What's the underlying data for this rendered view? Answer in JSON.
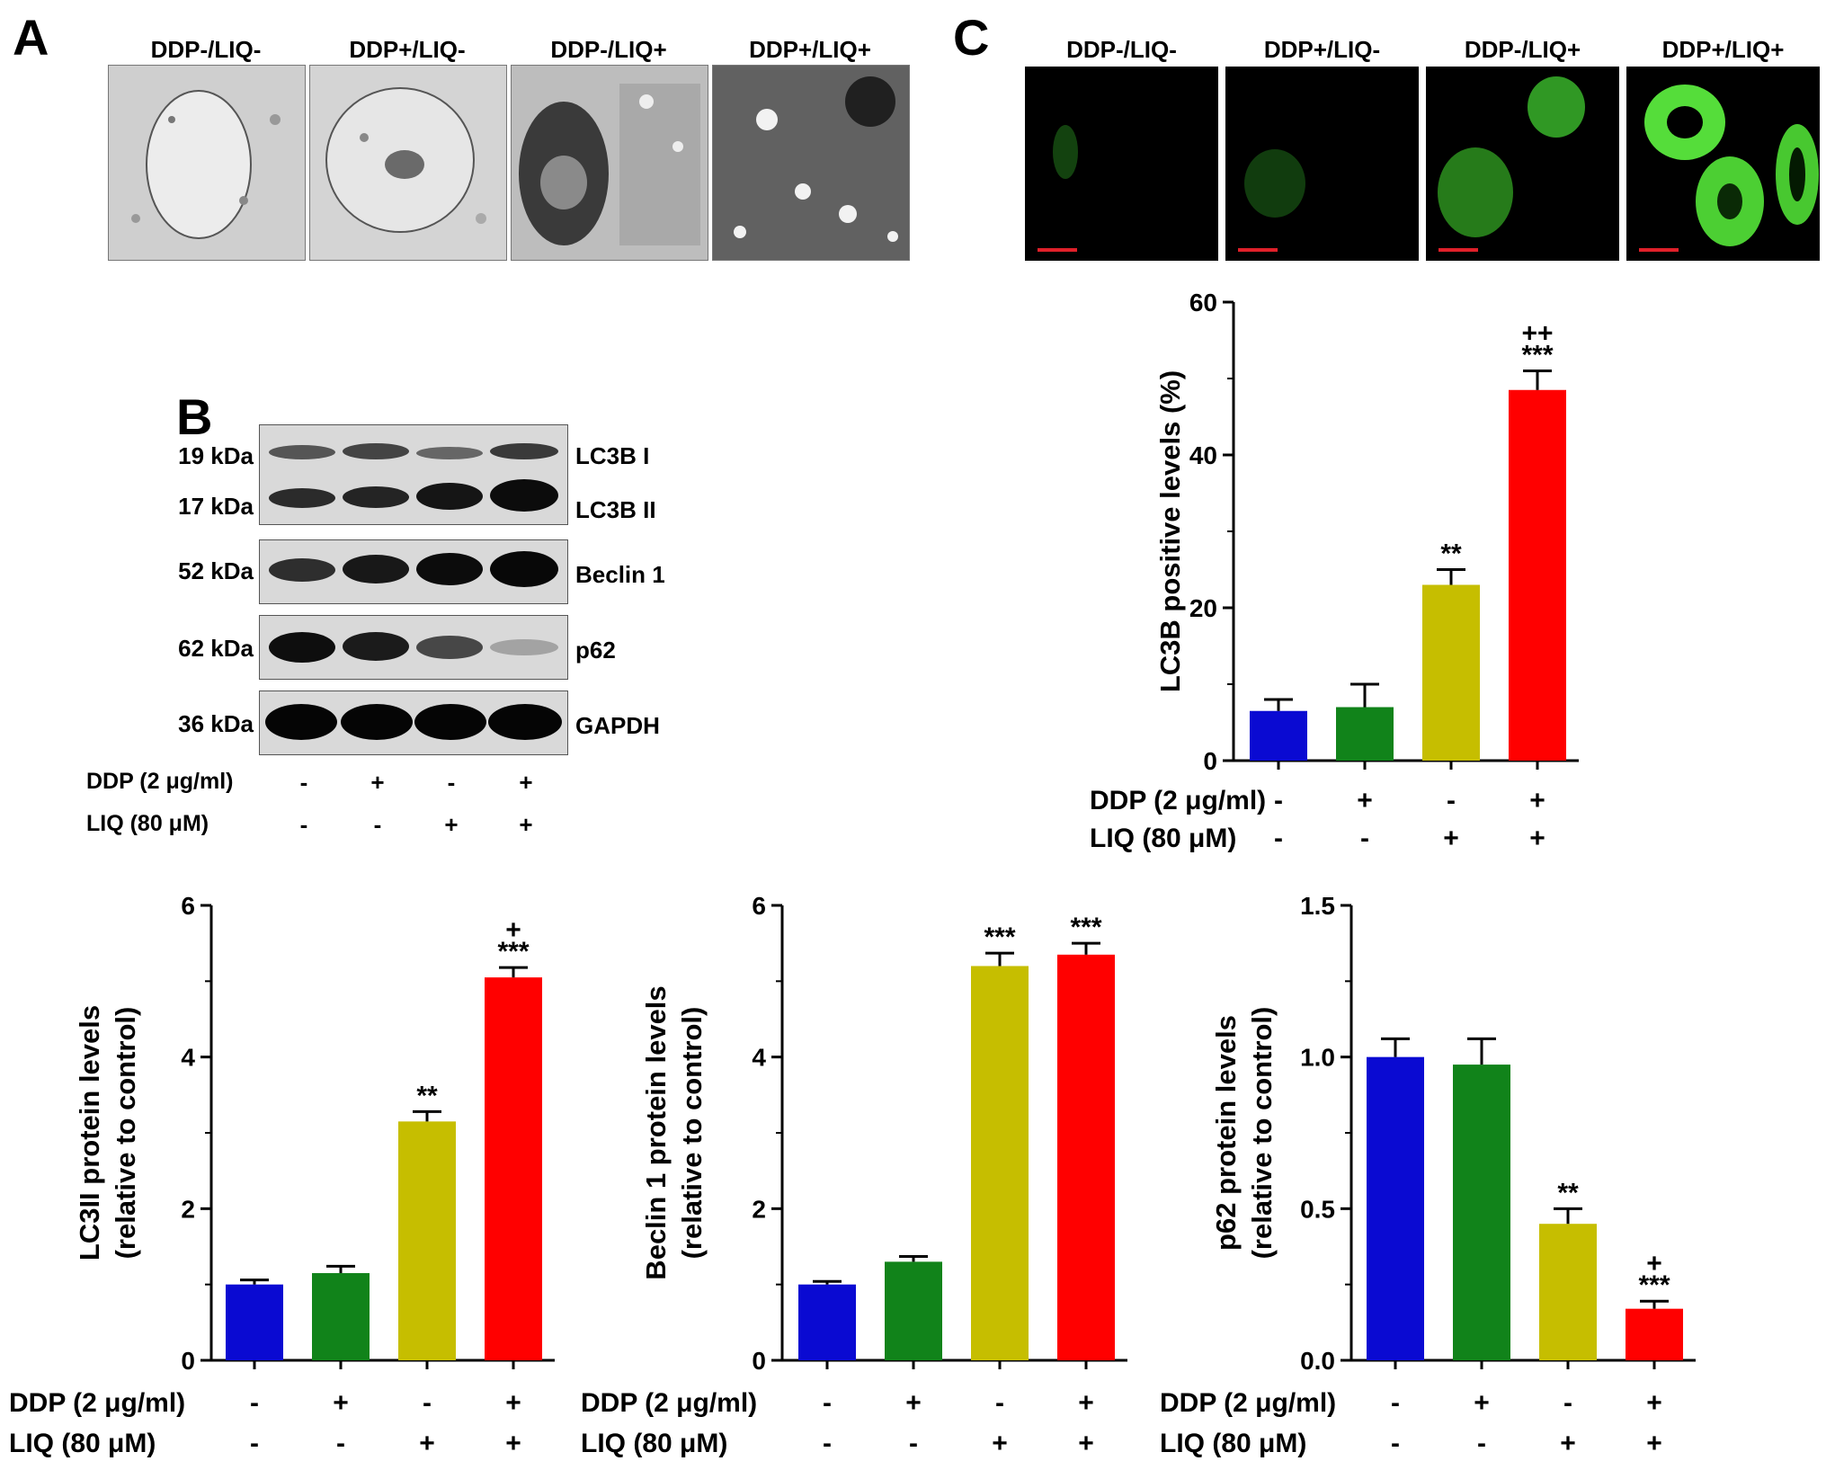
{
  "panels": {
    "A": {
      "letter": "A",
      "titles": [
        "DDP-/LIQ-",
        "DDP+/LIQ-",
        "DDP-/LIQ+",
        "DDP+/LIQ+"
      ]
    },
    "B": {
      "letter": "B",
      "blots": [
        {
          "kda": "19 kDa",
          "name": "LC3B I"
        },
        {
          "kda": "17 kDa",
          "name": "LC3B II"
        },
        {
          "kda": "52 kDa",
          "name": "Beclin 1"
        },
        {
          "kda": "62 kDa",
          "name": "p62"
        },
        {
          "kda": "36 kDa",
          "name": "GAPDH"
        }
      ],
      "treatment_rows": [
        {
          "label": "DDP (2 μg/ml)",
          "signs": [
            "-",
            "+",
            "-",
            "+"
          ]
        },
        {
          "label": "LIQ (80 μM)",
          "signs": [
            "-",
            "-",
            "+",
            "+"
          ]
        }
      ]
    },
    "C": {
      "letter": "C",
      "titles": [
        "DDP-/LIQ-",
        "DDP+/LIQ-",
        "DDP-/LIQ+",
        "DDP+/LIQ+"
      ]
    }
  },
  "colors": {
    "bar1": "#0a0ad2",
    "bar2": "#11831a",
    "bar3": "#c6be00",
    "bar4": "#ff0000",
    "scalebar": "#e0202a"
  },
  "chart_data": [
    {
      "id": "lc3b-positive",
      "type": "bar",
      "ylabel": "LC3B positive levels (%)",
      "ylim": [
        0,
        60
      ],
      "yticks": [
        "0",
        "20",
        "40",
        "60"
      ],
      "values": [
        6.5,
        7,
        23,
        48.5
      ],
      "errors": [
        1.5,
        3,
        2,
        2.5
      ],
      "annotations": [
        [],
        [],
        [
          "**"
        ],
        [
          "++",
          "***"
        ]
      ],
      "rows": [
        {
          "label": "DDP (2 μg/ml)",
          "signs": [
            "-",
            "+",
            "-",
            "+"
          ]
        },
        {
          "label": "LIQ (80 μM)",
          "signs": [
            "-",
            "-",
            "+",
            "+"
          ]
        }
      ]
    },
    {
      "id": "lc3ii-protein",
      "type": "bar",
      "ylabel": [
        "LC3II protein levels",
        "(relative to control)"
      ],
      "ylim": [
        0,
        6
      ],
      "yticks": [
        "0",
        "2",
        "4",
        "6"
      ],
      "values": [
        1.0,
        1.15,
        3.15,
        5.05
      ],
      "errors": [
        0.06,
        0.09,
        0.13,
        0.13
      ],
      "annotations": [
        [],
        [],
        [
          "**"
        ],
        [
          "+",
          "***"
        ]
      ],
      "rows": [
        {
          "label": "DDP (2 μg/ml)",
          "signs": [
            "-",
            "+",
            "-",
            "+"
          ]
        },
        {
          "label": "LIQ (80 μM)",
          "signs": [
            "-",
            "-",
            "+",
            "+"
          ]
        }
      ]
    },
    {
      "id": "beclin1-protein",
      "type": "bar",
      "ylabel": [
        "Beclin 1 protein levels",
        "(relative to control)"
      ],
      "ylim": [
        0,
        6
      ],
      "yticks": [
        "0",
        "2",
        "4",
        "6"
      ],
      "values": [
        1.0,
        1.3,
        5.2,
        5.35
      ],
      "errors": [
        0.04,
        0.07,
        0.17,
        0.15
      ],
      "annotations": [
        [],
        [],
        [
          "***"
        ],
        [
          "***"
        ]
      ],
      "rows": [
        {
          "label": "DDP (2 μg/ml)",
          "signs": [
            "-",
            "+",
            "-",
            "+"
          ]
        },
        {
          "label": "LIQ (80 μM)",
          "signs": [
            "-",
            "-",
            "+",
            "+"
          ]
        }
      ]
    },
    {
      "id": "p62-protein",
      "type": "bar",
      "ylabel": [
        "p62 protein levels",
        "(relative to control)"
      ],
      "ylim": [
        0,
        1.5
      ],
      "yticks": [
        "0.0",
        "0.5",
        "1.0",
        "1.5"
      ],
      "values": [
        1.0,
        0.975,
        0.45,
        0.17
      ],
      "errors": [
        0.06,
        0.085,
        0.05,
        0.025
      ],
      "annotations": [
        [],
        [],
        [
          "**"
        ],
        [
          "+",
          "***"
        ]
      ],
      "rows": [
        {
          "label": "DDP (2 μg/ml)",
          "signs": [
            "-",
            "+",
            "-",
            "+"
          ]
        },
        {
          "label": "LIQ (80 μM)",
          "signs": [
            "-",
            "-",
            "+",
            "+"
          ]
        }
      ]
    }
  ]
}
